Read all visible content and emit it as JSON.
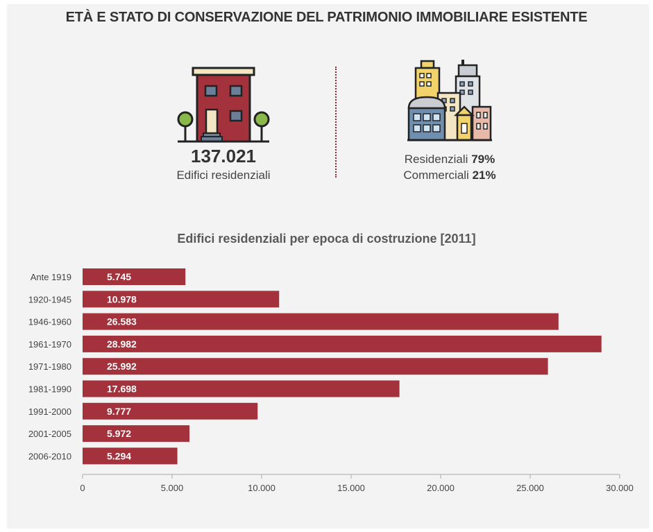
{
  "title": "ETÀ E STATO DI CONSERVAZIONE DEL PATRIMONIO IMMOBILIARE ESISTENTE",
  "summary": {
    "total_value": "137.021",
    "total_label": "Edifici residenziali",
    "residential_label": "Residenziali",
    "residential_pct": "79%",
    "commercial_label": "Commerciali",
    "commercial_pct": "21%",
    "house_icon": "house-icon",
    "city_icon": "city-buildings-icon"
  },
  "colors": {
    "bar": "#a3323d",
    "background": "#f3f3f3",
    "divider": "#8b2630"
  },
  "chart_data": {
    "type": "bar",
    "orientation": "horizontal",
    "title": "Edifici residenziali per epoca di costruzione [2011]",
    "categories": [
      "Ante 1919",
      "1920-1945",
      "1946-1960",
      "1961-1970",
      "1971-1980",
      "1981-1990",
      "1991-2000",
      "2001-2005",
      "2006-2010"
    ],
    "values": [
      5745,
      10978,
      26583,
      28982,
      25992,
      17698,
      9777,
      5972,
      5294
    ],
    "value_labels": [
      "5.745",
      "10.978",
      "26.583",
      "28.982",
      "25.992",
      "17.698",
      "9.777",
      "5.972",
      "5.294"
    ],
    "xlim": [
      0,
      30000
    ],
    "xticks": [
      0,
      5000,
      10000,
      15000,
      20000,
      25000,
      30000
    ],
    "xtick_labels": [
      "0",
      "5.000",
      "10.000",
      "15.000",
      "20.000",
      "25.000",
      "30.000"
    ],
    "grid": false,
    "legend": "none"
  }
}
